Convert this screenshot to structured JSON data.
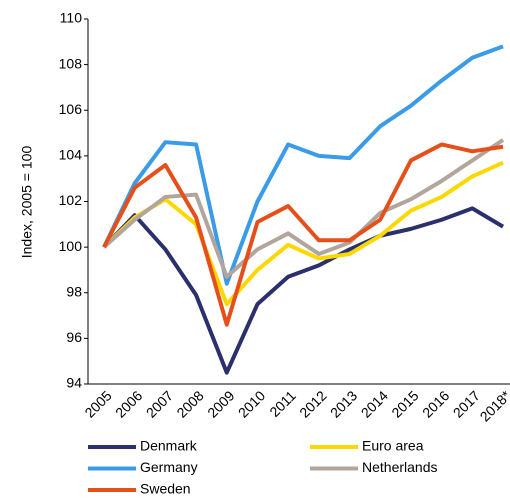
{
  "chart_data": {
    "type": "line",
    "y_label": "Index, 2005 = 100",
    "categories": [
      "2005",
      "2006",
      "2007",
      "2008",
      "2009",
      "2010",
      "2011",
      "2012",
      "2013",
      "2014",
      "2015",
      "2016",
      "2017",
      "2018*"
    ],
    "series": [
      {
        "name": "Denmark",
        "color": "#2b2f6b",
        "values": [
          100,
          101.4,
          99.9,
          97.9,
          94.5,
          97.5,
          98.7,
          99.2,
          99.9,
          100.5,
          100.8,
          101.2,
          101.7,
          100.9
        ]
      },
      {
        "name": "Euro area",
        "color": "#fcd800",
        "values": [
          100,
          101.3,
          102.1,
          101.0,
          97.5,
          99.0,
          100.1,
          99.5,
          99.7,
          100.5,
          101.6,
          102.2,
          103.1,
          103.7
        ]
      },
      {
        "name": "Germany",
        "color": "#3a9be8",
        "values": [
          100,
          102.8,
          104.6,
          104.5,
          98.4,
          102.0,
          104.5,
          104.0,
          103.9,
          105.3,
          106.2,
          107.3,
          108.3,
          108.8
        ]
      },
      {
        "name": "Netherlands",
        "color": "#b2a59b",
        "values": [
          100,
          101.2,
          102.2,
          102.3,
          98.7,
          99.9,
          100.6,
          99.7,
          100.2,
          101.5,
          102.1,
          102.9,
          103.8,
          104.7
        ]
      },
      {
        "name": "Sweden",
        "color": "#e5501a",
        "values": [
          100,
          102.6,
          103.6,
          101.3,
          96.6,
          101.1,
          101.8,
          100.3,
          100.3,
          101.2,
          103.8,
          104.5,
          104.2,
          104.4
        ]
      }
    ],
    "ylim": [
      94,
      110
    ],
    "yticks": [
      94,
      96,
      98,
      100,
      102,
      104,
      106,
      108,
      110
    ],
    "grid": false
  }
}
